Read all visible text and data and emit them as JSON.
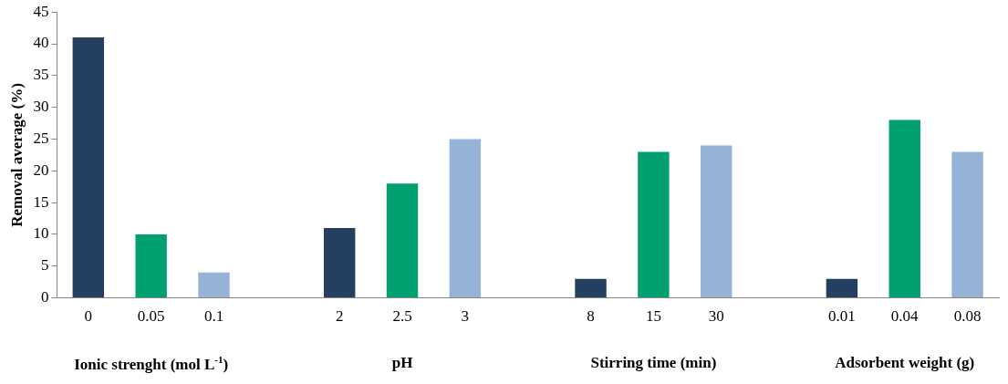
{
  "chart_data": {
    "type": "bar",
    "ylabel": "Removal average (%)",
    "categories": [
      "0",
      "0.05",
      "0.1",
      null,
      "2",
      "2.5",
      "3",
      null,
      "8",
      "15",
      "30",
      null,
      "0.01",
      "0.04",
      "0.08"
    ],
    "values": [
      41,
      10,
      4,
      null,
      11,
      18,
      25,
      null,
      3,
      23,
      24,
      null,
      3,
      28,
      23
    ],
    "colors": [
      "#243f60",
      "#00a070",
      "#95b3d7",
      null,
      "#243f60",
      "#00a070",
      "#95b3d7",
      null,
      "#243f60",
      "#00a070",
      "#95b3d7",
      null,
      "#243f60",
      "#00a070",
      "#95b3d7"
    ],
    "annotations": [
      "Ionic strenght (mol L$^{-1}$)",
      "pH",
      "Stirring  time (min)",
      "Adsorbent weight (g)"
    ],
    "ylim": [
      0,
      45
    ],
    "yticks": [
      0,
      5,
      10,
      15,
      20,
      25,
      30,
      35,
      40,
      45
    ],
    "grid": false,
    "legend": false
  }
}
